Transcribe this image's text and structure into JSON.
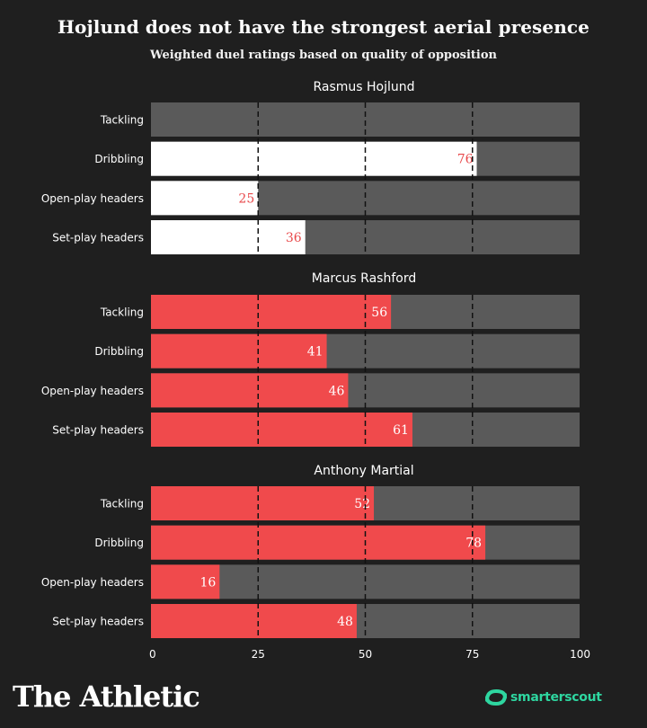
{
  "header": {
    "title": "Hojlund does not have the strongest aerial presence",
    "subtitle": "Weighted duel ratings based on quality of opposition"
  },
  "footer": {
    "logo_text": "The Athletic",
    "brand_text": "smarterscout",
    "brand_icon": "smarterscout-logo-icon"
  },
  "colors": {
    "background": "#1f1f1f",
    "track": "#5a5a5a",
    "highlight_fill": "#ffffff",
    "highlight_label": "#e8494b",
    "default_fill": "#f04a4c",
    "default_label": "#ffffff",
    "brand": "#2ed6a0"
  },
  "chart_data": {
    "type": "bar",
    "orientation": "horizontal",
    "title": "Hojlund does not have the strongest aerial presence",
    "subtitle": "Weighted duel ratings based on quality of opposition",
    "categories": [
      "Tackling",
      "Dribbling",
      "Open-play headers",
      "Set-play headers"
    ],
    "xlim": [
      0,
      100
    ],
    "xticks": [
      0,
      25,
      50,
      75,
      100
    ],
    "gridlines": "dashed at 25, 50, 75",
    "panels": [
      {
        "name": "Rasmus Hojlund",
        "values": [
          0,
          76,
          25,
          36
        ],
        "highlight": true
      },
      {
        "name": "Marcus Rashford",
        "values": [
          56,
          41,
          46,
          61
        ],
        "highlight": false
      },
      {
        "name": "Anthony Martial",
        "values": [
          52,
          78,
          16,
          48
        ],
        "highlight": false
      }
    ]
  }
}
